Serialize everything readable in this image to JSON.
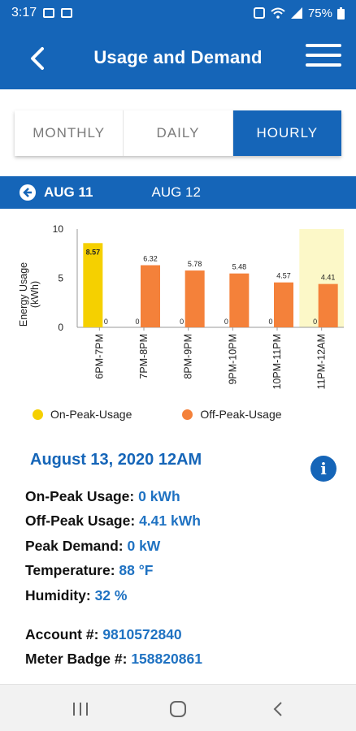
{
  "status_bar": {
    "time": "3:17",
    "battery": "75%"
  },
  "app_bar": {
    "title": "Usage and Demand"
  },
  "tabs": [
    {
      "label": "MONTHLY",
      "active": false
    },
    {
      "label": "DAILY",
      "active": false
    },
    {
      "label": "HOURLY",
      "active": true
    }
  ],
  "date_nav": {
    "current": "AUG 11",
    "next": "AUG 12"
  },
  "chart_data": {
    "type": "bar",
    "ylabel": "Energy Usage (kWh)",
    "ylim": [
      0,
      10
    ],
    "yticks": [
      0,
      5,
      10
    ],
    "categories": [
      "6PM-7PM",
      "7PM-8PM",
      "8PM-9PM",
      "9PM-10PM",
      "10PM-11PM",
      "11PM-12AM"
    ],
    "series": [
      {
        "name": "On-Peak-Usage",
        "color": "#f5d000",
        "values": [
          8.57,
          0,
          0,
          0,
          0,
          0
        ]
      },
      {
        "name": "Off-Peak-Usage",
        "color": "#f4813a",
        "values": [
          0,
          6.32,
          5.78,
          5.48,
          4.57,
          4.41
        ]
      }
    ],
    "highlighted_category": "11PM-12AM",
    "highlight_color": "#fcf8c8",
    "legend_position": "bottom"
  },
  "legend": {
    "on_peak": "On-Peak-Usage",
    "off_peak": "Off-Peak-Usage"
  },
  "details": {
    "title": "August 13, 2020 12AM",
    "on_peak_label": "On-Peak Usage:",
    "on_peak_value": "0 kWh",
    "off_peak_label": "Off-Peak Usage:",
    "off_peak_value": "4.41 kWh",
    "peak_demand_label": "Peak Demand:",
    "peak_demand_value": "0 kW",
    "temperature_label": "Temperature:",
    "temperature_value": "88 °F",
    "humidity_label": "Humidity:",
    "humidity_value": "32 %",
    "account_label": "Account #:",
    "account_value": "9810572840",
    "meter_label": "Meter Badge #:",
    "meter_value": "158820861"
  },
  "colors": {
    "primary": "#1565b8",
    "value_text": "#1f72c2"
  }
}
